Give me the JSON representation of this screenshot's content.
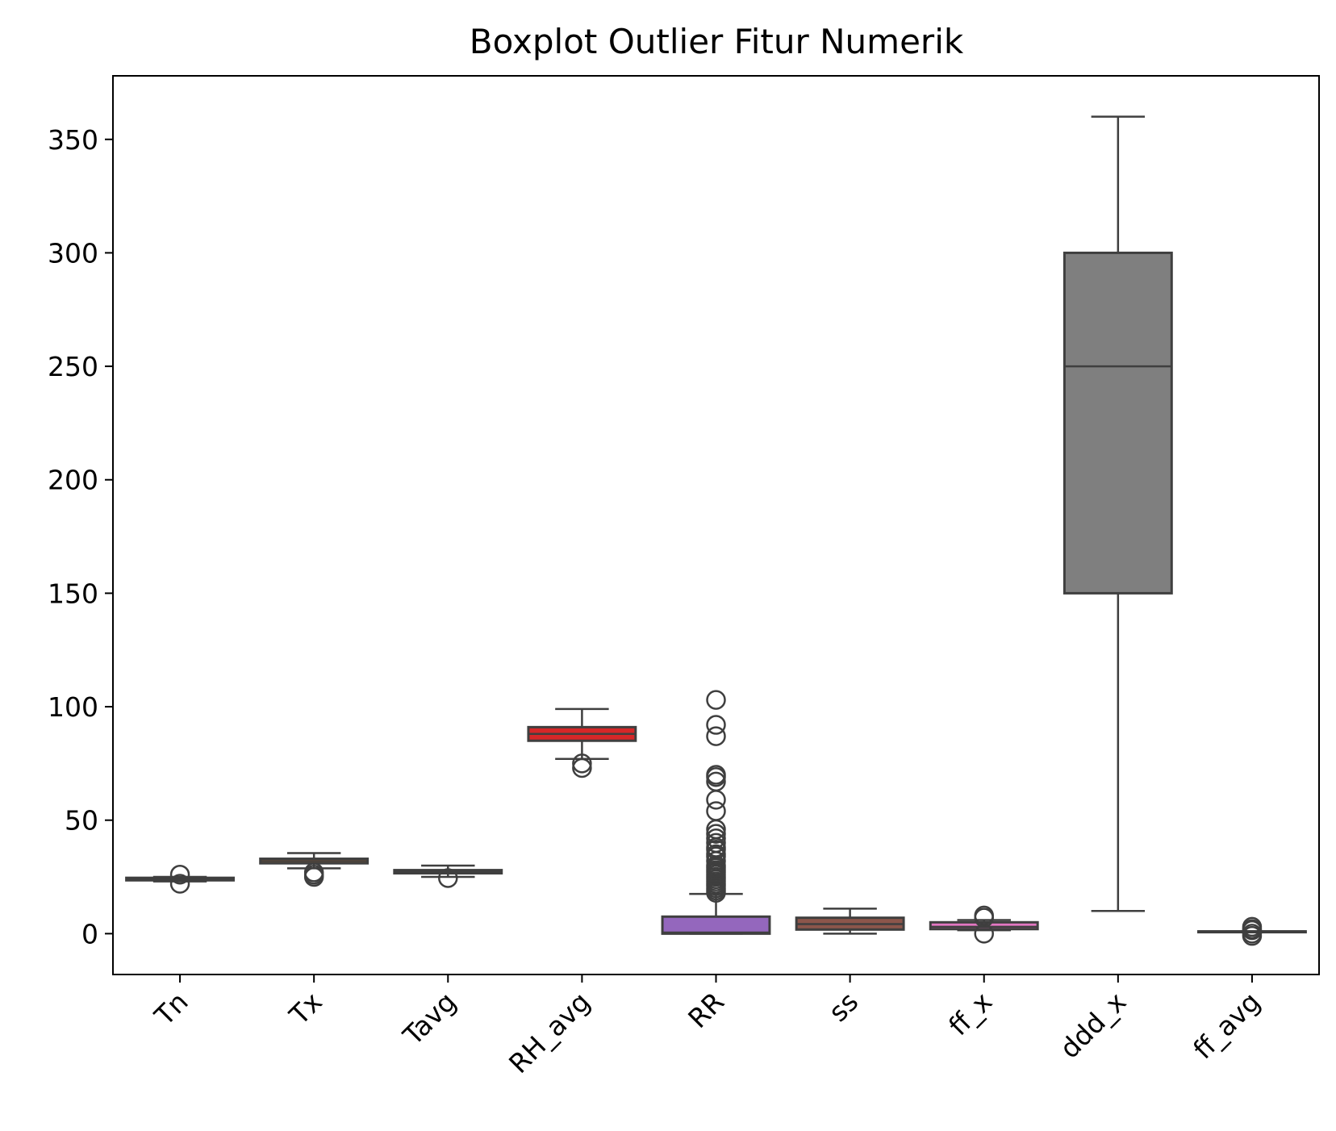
{
  "chart_data": {
    "type": "box",
    "title": "Boxplot Outlier Fitur Numerik",
    "xlabel": "",
    "ylabel": "",
    "ylim": [
      -18,
      378
    ],
    "yticks": [
      0,
      50,
      100,
      150,
      200,
      250,
      300,
      350
    ],
    "ytick_labels": [
      "0",
      "50",
      "100",
      "150",
      "200",
      "250",
      "300",
      "350"
    ],
    "categories": [
      "Tn",
      "Tx",
      "Tavg",
      "RH_avg",
      "RR",
      "ss",
      "ff_x",
      "ddd_x",
      "ff_avg"
    ],
    "grid": false,
    "colors": {
      "box_edge": "#3f3f3f",
      "fills": [
        "#1f77b4",
        "#ff7f0e",
        "#2ca02c",
        "#d62728",
        "#9467bd",
        "#8c564b",
        "#e377c2",
        "#7f7f7f",
        "#bcbd22"
      ]
    },
    "boxes": [
      {
        "category": "Tn",
        "whisker_low": 23,
        "q1": 23.5,
        "median": 24,
        "q3": 24.6,
        "whisker_high": 25,
        "outliers": [
          22,
          26
        ]
      },
      {
        "category": "Tx",
        "whisker_low": 28.8,
        "q1": 31,
        "median": 32,
        "q3": 33,
        "whisker_high": 35.5,
        "outliers": [
          25,
          26,
          27
        ]
      },
      {
        "category": "Tavg",
        "whisker_low": 25,
        "q1": 26.6,
        "median": 27.3,
        "q3": 28,
        "whisker_high": 30,
        "outliers": [
          24.5
        ]
      },
      {
        "category": "RH_avg",
        "whisker_low": 77,
        "q1": 85,
        "median": 88,
        "q3": 91,
        "whisker_high": 99,
        "outliers": [
          73,
          75
        ]
      },
      {
        "category": "RR",
        "whisker_low": 0,
        "q1": 0,
        "median": 0.5,
        "q3": 7.5,
        "whisker_high": 17.5,
        "outliers": [
          18,
          19,
          20,
          21,
          22,
          23,
          24,
          25,
          26,
          27,
          28,
          29,
          30,
          32,
          34,
          35,
          37,
          38,
          40,
          42,
          44,
          46,
          54,
          59,
          67,
          69,
          70,
          87,
          92,
          103
        ]
      },
      {
        "category": "ss",
        "whisker_low": 0,
        "q1": 1.8,
        "median": 4.2,
        "q3": 7,
        "whisker_high": 11,
        "outliers": []
      },
      {
        "category": "ff_x",
        "whisker_low": 1.5,
        "q1": 2,
        "median": 3,
        "q3": 5,
        "whisker_high": 6,
        "outliers": [
          0,
          7,
          8
        ]
      },
      {
        "category": "ddd_x",
        "whisker_low": 10,
        "q1": 150,
        "median": 250,
        "q3": 300,
        "whisker_high": 360,
        "outliers": []
      },
      {
        "category": "ff_avg",
        "whisker_low": 1,
        "q1": 1,
        "median": 1,
        "q3": 1,
        "whisker_high": 1,
        "outliers": [
          -1,
          0,
          1.5,
          2,
          3
        ]
      }
    ]
  }
}
